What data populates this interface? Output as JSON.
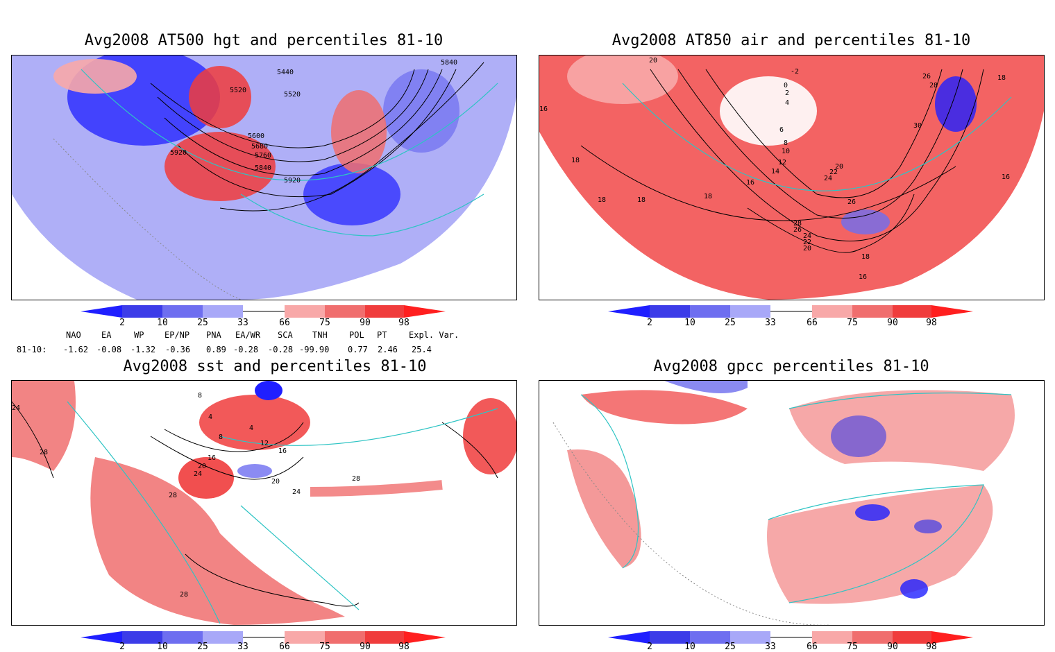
{
  "panels": [
    {
      "title": "Avg2008 AT500 hgt and percentiles 81-10",
      "contour_labels": [
        "5440",
        "5520",
        "5520",
        "5600",
        "5680",
        "5760",
        "5840",
        "5840",
        "5920",
        "5920"
      ]
    },
    {
      "title": "Avg2008 AT850 air and percentiles 81-10",
      "contour_labels": [
        "20",
        "-2",
        "0",
        "2",
        "4",
        "26",
        "28",
        "18",
        "30",
        "6",
        "8",
        "10",
        "12",
        "14",
        "16",
        "16",
        "16",
        "18",
        "18",
        "18",
        "18",
        "20",
        "22",
        "24",
        "26",
        "28",
        "26",
        "24",
        "22",
        "20",
        "18",
        "16"
      ]
    },
    {
      "title": "Avg2008 sst and percentiles 81-10",
      "contour_labels": [
        "24",
        "28",
        "8",
        "4",
        "4",
        "8",
        "12",
        "16",
        "16",
        "20",
        "24",
        "24",
        "28",
        "28",
        "28",
        "20"
      ]
    },
    {
      "title": "Avg2008 gpcc percentiles 81-10",
      "contour_labels": []
    }
  ],
  "colorbar": {
    "labels": [
      "2",
      "10",
      "25",
      "33",
      "66",
      "75",
      "90",
      "98"
    ],
    "colors": [
      "#1f1fff",
      "#3c3ce8",
      "#6e6ef0",
      "#a8a8f8",
      "#ffffff",
      "#f8a8a8",
      "#f06e6e",
      "#f03c3c",
      "#ff1f1f"
    ]
  },
  "indices": {
    "headers": [
      "NAO",
      "EA",
      "WP",
      "EP/NP",
      "PNA",
      "EA/WR",
      "SCA",
      "TNH",
      "POL",
      "PT",
      "Expl. Var."
    ],
    "row_label": "81-10:",
    "values": [
      "-1.62",
      "-0.08",
      "-1.32",
      "-0.36",
      "0.89",
      "-0.28",
      "-0.28",
      "-99.90",
      "0.77",
      "2.46",
      "25.4"
    ]
  }
}
